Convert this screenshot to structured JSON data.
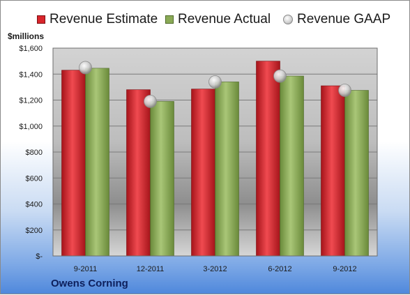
{
  "chart_data": {
    "type": "bar",
    "categories": [
      "9-2011",
      "12-2011",
      "3-2012",
      "6-2012",
      "9-2012"
    ],
    "series": [
      {
        "name": "Revenue Estimate",
        "values": [
          1430,
          1280,
          1285,
          1500,
          1310
        ],
        "color": "#d8252b",
        "kind": "bar"
      },
      {
        "name": "Revenue Actual",
        "values": [
          1445,
          1190,
          1340,
          1385,
          1275
        ],
        "color": "#8aaa56",
        "kind": "bar"
      },
      {
        "name": "Revenue GAAP",
        "values": [
          1450,
          1190,
          1340,
          1385,
          1275
        ],
        "color": "#c8c8c8",
        "kind": "marker"
      }
    ],
    "ylabel": "$millions",
    "ylim": [
      0,
      1600
    ],
    "yticks": [
      0,
      200,
      400,
      600,
      800,
      1000,
      1200,
      1400,
      1600
    ],
    "ytick_labels": [
      "$-",
      "$200",
      "$400",
      "$600",
      "$800",
      "$1,000",
      "$1,200",
      "$1,400",
      "$1,600"
    ],
    "grid": true,
    "legend": "top",
    "footer": "Owens Corning"
  }
}
